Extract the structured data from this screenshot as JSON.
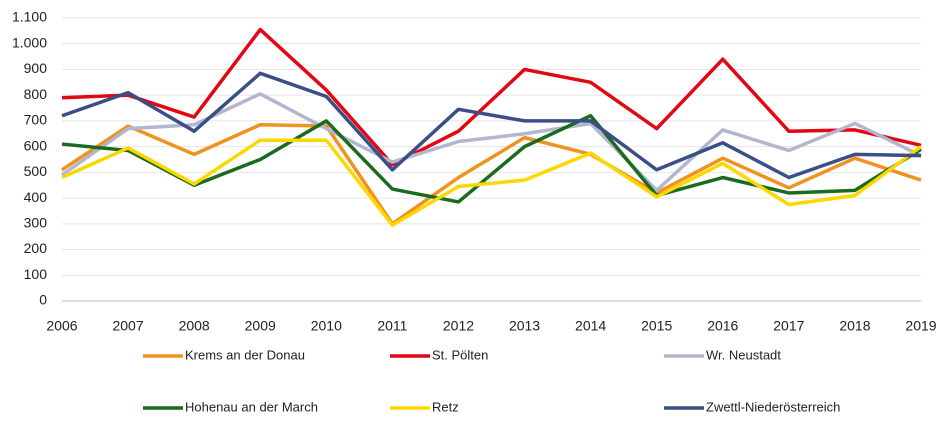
{
  "chart_data": {
    "type": "line",
    "categories": [
      "2006",
      "2007",
      "2008",
      "2009",
      "2010",
      "2011",
      "2012",
      "2013",
      "2014",
      "2015",
      "2016",
      "2017",
      "2018",
      "2019"
    ],
    "series": [
      {
        "name": "Krems an der Donau",
        "color": "#f0921e",
        "values": [
          510,
          680,
          570,
          685,
          680,
          300,
          480,
          635,
          570,
          420,
          555,
          440,
          555,
          470
        ]
      },
      {
        "name": "St. Pölten",
        "color": "#e30613",
        "values": [
          790,
          800,
          715,
          1055,
          820,
          530,
          660,
          900,
          850,
          670,
          940,
          660,
          665,
          605
        ]
      },
      {
        "name": "Wr. Neustadt",
        "color": "#b3b6cf",
        "values": [
          490,
          670,
          685,
          805,
          670,
          540,
          620,
          650,
          690,
          430,
          665,
          585,
          690,
          565
        ]
      },
      {
        "name": "Hohenau an der March",
        "color": "#1b6b1e",
        "values": [
          610,
          585,
          450,
          550,
          700,
          435,
          385,
          600,
          720,
          410,
          480,
          420,
          430,
          590
        ]
      },
      {
        "name": "Retz",
        "color": "#ffd700",
        "values": [
          480,
          595,
          455,
          625,
          625,
          295,
          445,
          470,
          575,
          405,
          535,
          375,
          410,
          600
        ]
      },
      {
        "name": "Zwettl-Niederösterreich",
        "color": "#3a4f86",
        "values": [
          720,
          810,
          660,
          885,
          795,
          510,
          745,
          700,
          700,
          510,
          615,
          480,
          570,
          565
        ]
      }
    ],
    "ylim": [
      0,
      1100
    ],
    "yticks": [
      0,
      100,
      200,
      300,
      400,
      500,
      600,
      700,
      800,
      900,
      {
        "value": 1000,
        "label": "1.000"
      },
      {
        "value": 1100,
        "label": "1.100"
      }
    ],
    "grid": true
  }
}
